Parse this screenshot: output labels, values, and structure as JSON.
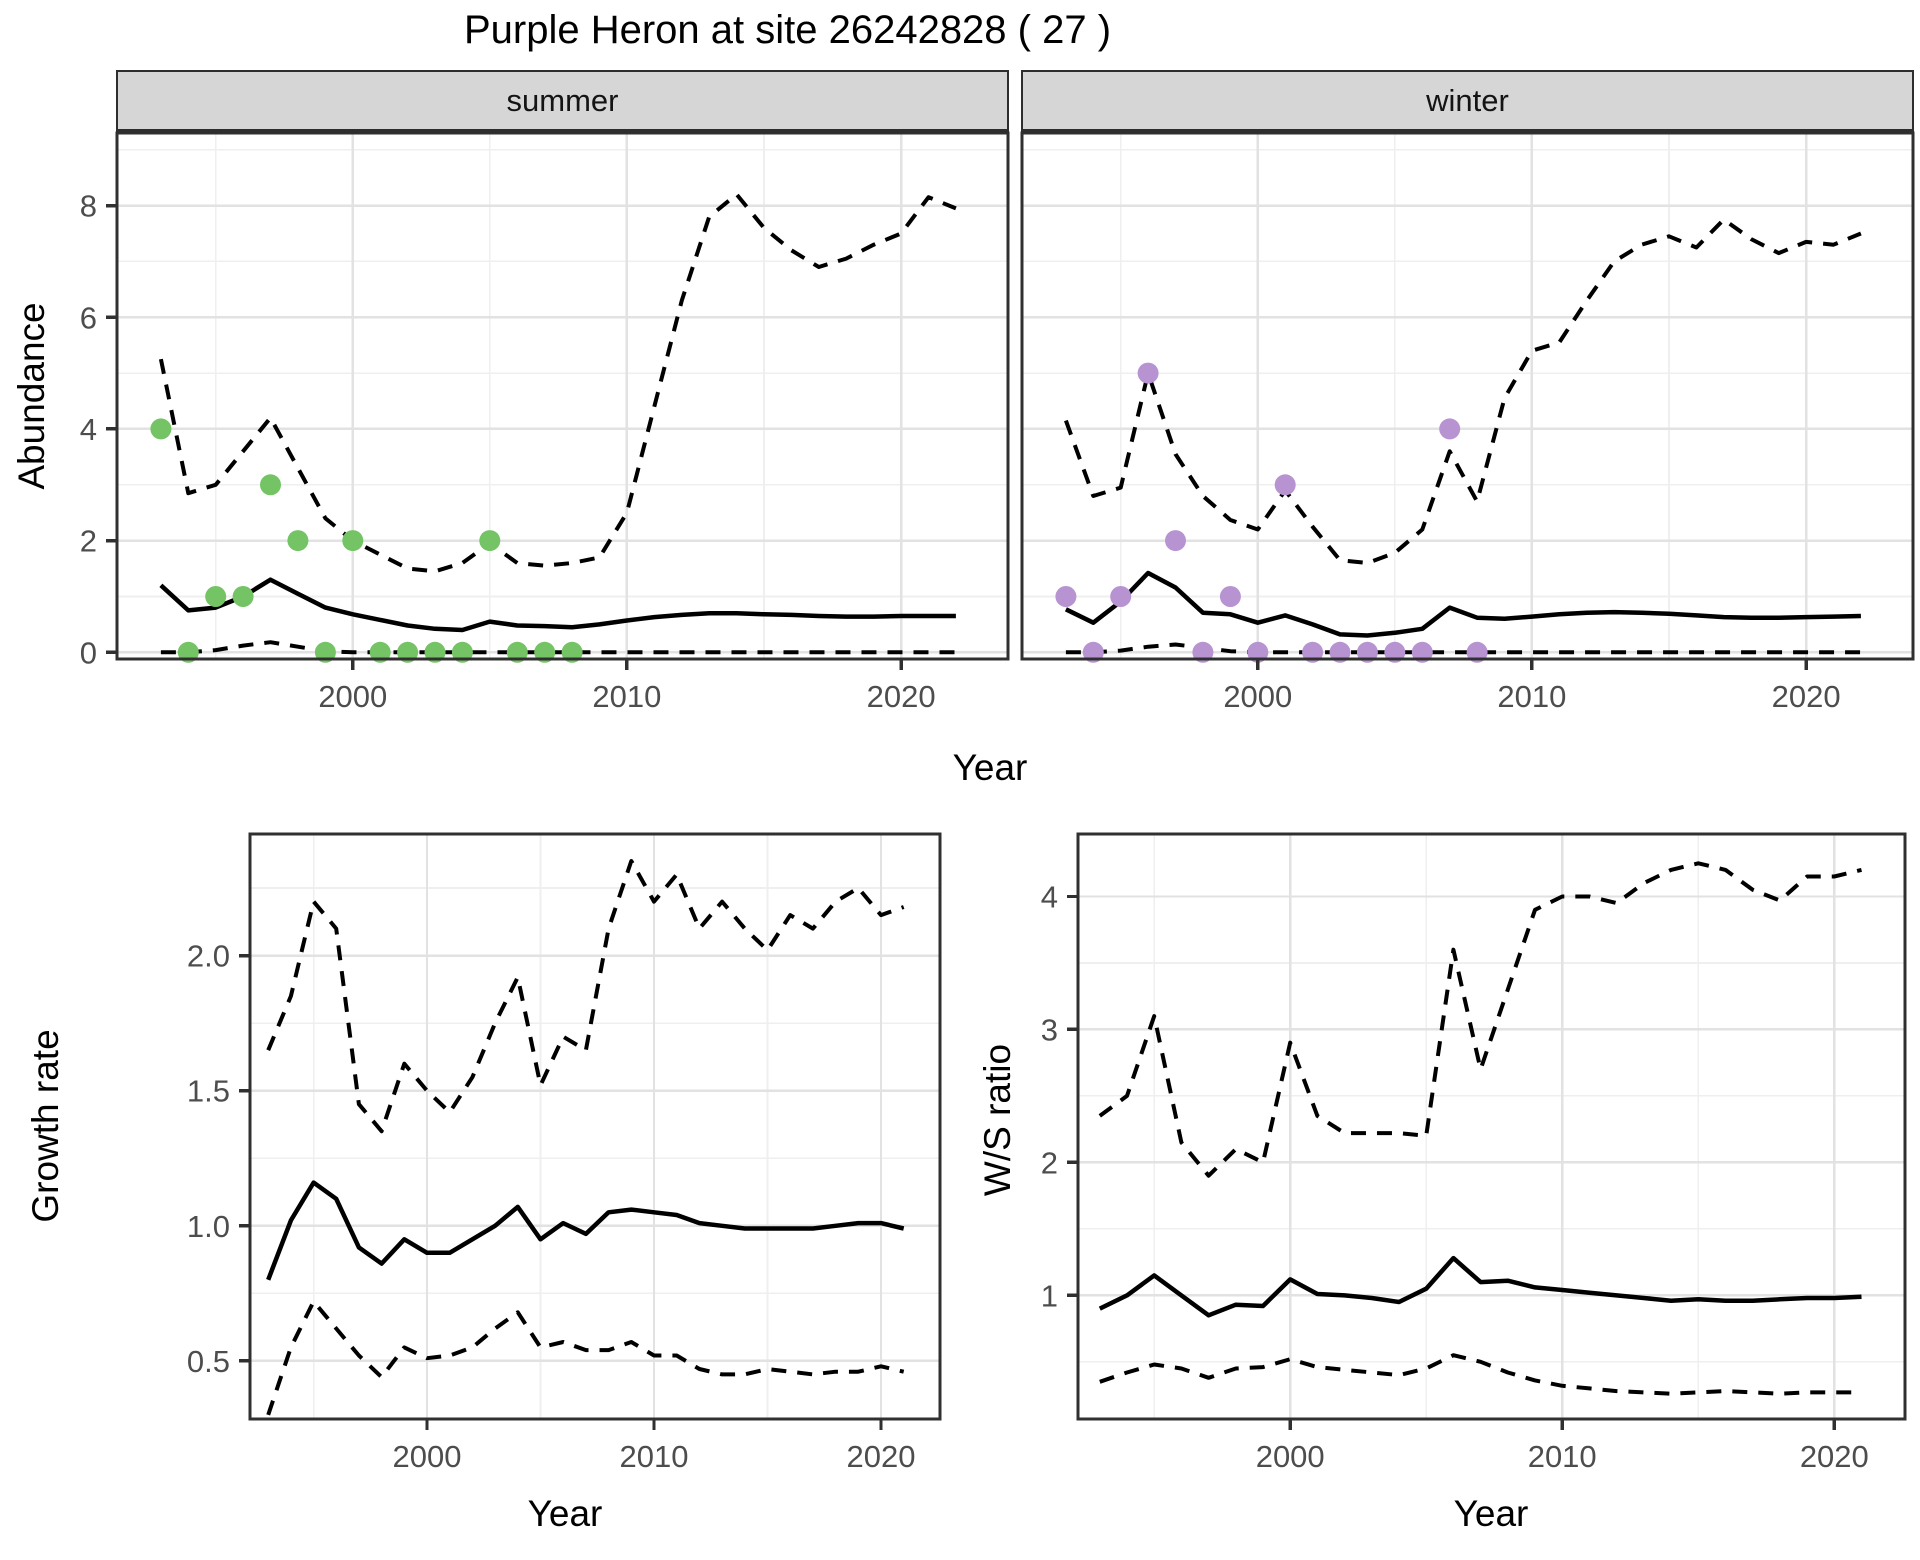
{
  "title": "Purple Heron at site 26242828 ( 27 )",
  "colors": {
    "line": "#000000",
    "border": "#303030",
    "tick_text": "#4d4d4d",
    "major_grid": "#e2e2e2",
    "minor_grid": "#efefef",
    "strip_bg": "#d6d6d6",
    "summer_point": "#74c365",
    "winter_point": "#b794d1"
  },
  "chart_data": [
    {
      "type": "line",
      "name": "summer-abundance",
      "facet": "summer",
      "xlabel": "Year",
      "ylabel": "Abundance",
      "xlim": [
        1991.4,
        2023.9
      ],
      "ylim": [
        -0.12,
        9.3
      ],
      "x_ticks": [
        2000,
        2010,
        2020
      ],
      "x_tick_labels": [
        "2000",
        "2010",
        "2020"
      ],
      "x_minor": [
        1995,
        2005,
        2015
      ],
      "y_ticks": [
        0,
        2,
        4,
        6,
        8
      ],
      "y_tick_labels": [
        "0",
        "2",
        "4",
        "6",
        "8"
      ],
      "y_minor": [
        1,
        3,
        5,
        7,
        9
      ],
      "years": [
        1993,
        1994,
        1995,
        1996,
        1997,
        1998,
        1999,
        2000,
        2001,
        2002,
        2003,
        2004,
        2005,
        2006,
        2007,
        2008,
        2009,
        2010,
        2011,
        2012,
        2013,
        2014,
        2015,
        2016,
        2017,
        2018,
        2019,
        2020,
        2021,
        2022
      ],
      "series": [
        {
          "name": "mean",
          "style": "solid",
          "values": [
            1.2,
            0.75,
            0.8,
            1.0,
            1.3,
            1.05,
            0.8,
            0.68,
            0.58,
            0.48,
            0.42,
            0.4,
            0.55,
            0.48,
            0.47,
            0.45,
            0.5,
            0.57,
            0.63,
            0.67,
            0.7,
            0.7,
            0.68,
            0.67,
            0.65,
            0.64,
            0.64,
            0.65,
            0.65,
            0.65
          ]
        },
        {
          "name": "upper-ci",
          "style": "dashed",
          "values": [
            5.25,
            2.85,
            3.0,
            3.6,
            4.2,
            3.3,
            2.4,
            2.0,
            1.75,
            1.5,
            1.45,
            1.6,
            1.95,
            1.6,
            1.55,
            1.6,
            1.7,
            2.5,
            4.4,
            6.3,
            7.8,
            8.2,
            7.6,
            7.2,
            6.9,
            7.05,
            7.3,
            7.5,
            8.15,
            7.95
          ]
        },
        {
          "name": "lower-ci",
          "style": "dashed",
          "values": [
            0,
            0,
            0.04,
            0.12,
            0.18,
            0.1,
            0.02,
            0,
            0,
            0,
            0,
            0,
            0,
            0,
            0,
            0,
            0,
            0,
            0,
            0,
            0,
            0,
            0,
            0,
            0,
            0,
            0,
            0,
            0,
            0
          ]
        }
      ],
      "points": {
        "name": "observed-count",
        "color": "#74c365",
        "years": [
          1993,
          1994,
          1995,
          1996,
          1997,
          1998,
          1999,
          2000,
          2001,
          2002,
          2003,
          2004,
          2005,
          2006,
          2007,
          2008
        ],
        "values": [
          4,
          0,
          1,
          1,
          3,
          2,
          0,
          2,
          0,
          0,
          0,
          0,
          2,
          0,
          0,
          0
        ]
      }
    },
    {
      "type": "line",
      "name": "winter-abundance",
      "facet": "winter",
      "xlabel": "Year",
      "ylabel": "Abundance",
      "xlim": [
        1991.4,
        2023.9
      ],
      "ylim": [
        -0.12,
        9.3
      ],
      "x_ticks": [
        2000,
        2010,
        2020
      ],
      "x_tick_labels": [
        "2000",
        "2010",
        "2020"
      ],
      "x_minor": [
        1995,
        2005,
        2015
      ],
      "y_ticks": [
        0,
        2,
        4,
        6,
        8
      ],
      "y_tick_labels": [],
      "y_minor": [
        1,
        3,
        5,
        7,
        9
      ],
      "years": [
        1993,
        1994,
        1995,
        1996,
        1997,
        1998,
        1999,
        2000,
        2001,
        2002,
        2003,
        2004,
        2005,
        2006,
        2007,
        2008,
        2009,
        2010,
        2011,
        2012,
        2013,
        2014,
        2015,
        2016,
        2017,
        2018,
        2019,
        2020,
        2021,
        2022
      ],
      "series": [
        {
          "name": "mean",
          "style": "solid",
          "values": [
            0.77,
            0.53,
            0.91,
            1.42,
            1.16,
            0.71,
            0.68,
            0.53,
            0.66,
            0.5,
            0.32,
            0.3,
            0.35,
            0.42,
            0.8,
            0.62,
            0.6,
            0.64,
            0.68,
            0.71,
            0.72,
            0.71,
            0.69,
            0.66,
            0.63,
            0.62,
            0.62,
            0.63,
            0.64,
            0.65
          ]
        },
        {
          "name": "upper-ci",
          "style": "dashed",
          "values": [
            4.15,
            2.8,
            2.95,
            5.0,
            3.55,
            2.8,
            2.37,
            2.2,
            2.9,
            2.25,
            1.65,
            1.6,
            1.78,
            2.2,
            3.6,
            2.7,
            4.55,
            5.4,
            5.55,
            6.3,
            7.0,
            7.3,
            7.45,
            7.25,
            7.75,
            7.4,
            7.15,
            7.35,
            7.3,
            7.5
          ]
        },
        {
          "name": "lower-ci",
          "style": "dashed",
          "values": [
            0,
            0,
            0.03,
            0.1,
            0.14,
            0.08,
            0.02,
            0,
            0,
            0,
            0,
            0,
            0,
            0,
            0,
            0,
            0,
            0,
            0,
            0,
            0,
            0,
            0,
            0,
            0,
            0,
            0,
            0,
            0,
            0
          ]
        }
      ],
      "points": {
        "name": "observed-count",
        "color": "#b794d1",
        "years": [
          1993,
          1994,
          1995,
          1996,
          1997,
          1998,
          1999,
          2000,
          2001,
          2002,
          2003,
          2004,
          2005,
          2006,
          2007,
          2008
        ],
        "values": [
          1,
          0,
          1,
          5,
          2,
          0,
          1,
          0,
          3,
          0,
          0,
          0,
          0,
          0,
          4,
          0
        ]
      }
    },
    {
      "type": "line",
      "name": "growth-rate",
      "facet": "",
      "xlabel": "Year",
      "ylabel": "Growth rate",
      "xlim": [
        1992.2,
        2022.6
      ],
      "ylim": [
        0.285,
        2.45
      ],
      "x_ticks": [
        2000,
        2010,
        2020
      ],
      "x_tick_labels": [
        "2000",
        "2010",
        "2020"
      ],
      "x_minor": [
        1995,
        2005,
        2015
      ],
      "y_ticks": [
        0.5,
        1.0,
        1.5,
        2.0
      ],
      "y_tick_labels": [
        "0.5",
        "1.0",
        "1.5",
        "2.0"
      ],
      "y_minor": [
        0.75,
        1.25,
        1.75,
        2.25
      ],
      "years": [
        1993,
        1994,
        1995,
        1996,
        1997,
        1998,
        1999,
        2000,
        2001,
        2002,
        2003,
        2004,
        2005,
        2006,
        2007,
        2008,
        2009,
        2010,
        2011,
        2012,
        2013,
        2014,
        2015,
        2016,
        2017,
        2018,
        2019,
        2020,
        2021
      ],
      "series": [
        {
          "name": "mean",
          "style": "solid",
          "values": [
            0.8,
            1.02,
            1.16,
            1.1,
            0.92,
            0.86,
            0.95,
            0.9,
            0.9,
            0.95,
            1.0,
            1.07,
            0.95,
            1.01,
            0.97,
            1.05,
            1.06,
            1.05,
            1.04,
            1.01,
            1.0,
            0.99,
            0.99,
            0.99,
            0.99,
            1.0,
            1.01,
            1.01,
            0.99
          ]
        },
        {
          "name": "upper-ci",
          "style": "dashed",
          "values": [
            1.65,
            1.85,
            2.2,
            2.1,
            1.45,
            1.35,
            1.6,
            1.5,
            1.42,
            1.55,
            1.75,
            1.92,
            1.52,
            1.7,
            1.65,
            2.1,
            2.35,
            2.2,
            2.3,
            2.1,
            2.2,
            2.1,
            2.02,
            2.15,
            2.1,
            2.2,
            2.25,
            2.15,
            2.18
          ]
        },
        {
          "name": "lower-ci",
          "style": "dashed",
          "values": [
            0.3,
            0.55,
            0.72,
            0.62,
            0.52,
            0.44,
            0.55,
            0.51,
            0.52,
            0.55,
            0.62,
            0.68,
            0.55,
            0.57,
            0.54,
            0.54,
            0.57,
            0.52,
            0.52,
            0.47,
            0.45,
            0.45,
            0.47,
            0.46,
            0.45,
            0.46,
            0.46,
            0.48,
            0.46
          ]
        }
      ]
    },
    {
      "type": "line",
      "name": "ws-ratio",
      "facet": "",
      "xlabel": "Year",
      "ylabel": "W/S ratio",
      "xlim": [
        1992.2,
        2022.6
      ],
      "ylim": [
        0.07,
        4.47
      ],
      "x_ticks": [
        2000,
        2010,
        2020
      ],
      "x_tick_labels": [
        "2000",
        "2010",
        "2020"
      ],
      "x_minor": [
        1995,
        2005,
        2015
      ],
      "y_ticks": [
        1,
        2,
        3,
        4
      ],
      "y_tick_labels": [
        "1",
        "2",
        "3",
        "4"
      ],
      "y_minor": [
        0.5,
        1.5,
        2.5,
        3.5
      ],
      "years": [
        1993,
        1994,
        1995,
        1996,
        1997,
        1998,
        1999,
        2000,
        2001,
        2002,
        2003,
        2004,
        2005,
        2006,
        2007,
        2008,
        2009,
        2010,
        2011,
        2012,
        2013,
        2014,
        2015,
        2016,
        2017,
        2018,
        2019,
        2020,
        2021
      ],
      "series": [
        {
          "name": "mean",
          "style": "solid",
          "values": [
            0.9,
            1.0,
            1.15,
            1.0,
            0.85,
            0.93,
            0.92,
            1.12,
            1.01,
            1.0,
            0.98,
            0.95,
            1.05,
            1.28,
            1.1,
            1.11,
            1.06,
            1.04,
            1.02,
            1.0,
            0.98,
            0.96,
            0.97,
            0.96,
            0.96,
            0.97,
            0.98,
            0.98,
            0.99
          ]
        },
        {
          "name": "upper-ci",
          "style": "dashed",
          "values": [
            2.35,
            2.5,
            3.1,
            2.15,
            1.9,
            2.1,
            2.0,
            2.9,
            2.35,
            2.22,
            2.22,
            2.22,
            2.2,
            3.6,
            2.7,
            3.3,
            3.9,
            4.0,
            4.0,
            3.95,
            4.1,
            4.2,
            4.25,
            4.2,
            4.05,
            3.97,
            4.15,
            4.15,
            4.2
          ]
        },
        {
          "name": "lower-ci",
          "style": "dashed",
          "values": [
            0.35,
            0.42,
            0.48,
            0.45,
            0.38,
            0.45,
            0.46,
            0.52,
            0.46,
            0.44,
            0.42,
            0.4,
            0.45,
            0.55,
            0.5,
            0.42,
            0.36,
            0.32,
            0.3,
            0.28,
            0.27,
            0.26,
            0.27,
            0.28,
            0.27,
            0.26,
            0.27,
            0.27,
            0.27
          ]
        }
      ]
    }
  ]
}
